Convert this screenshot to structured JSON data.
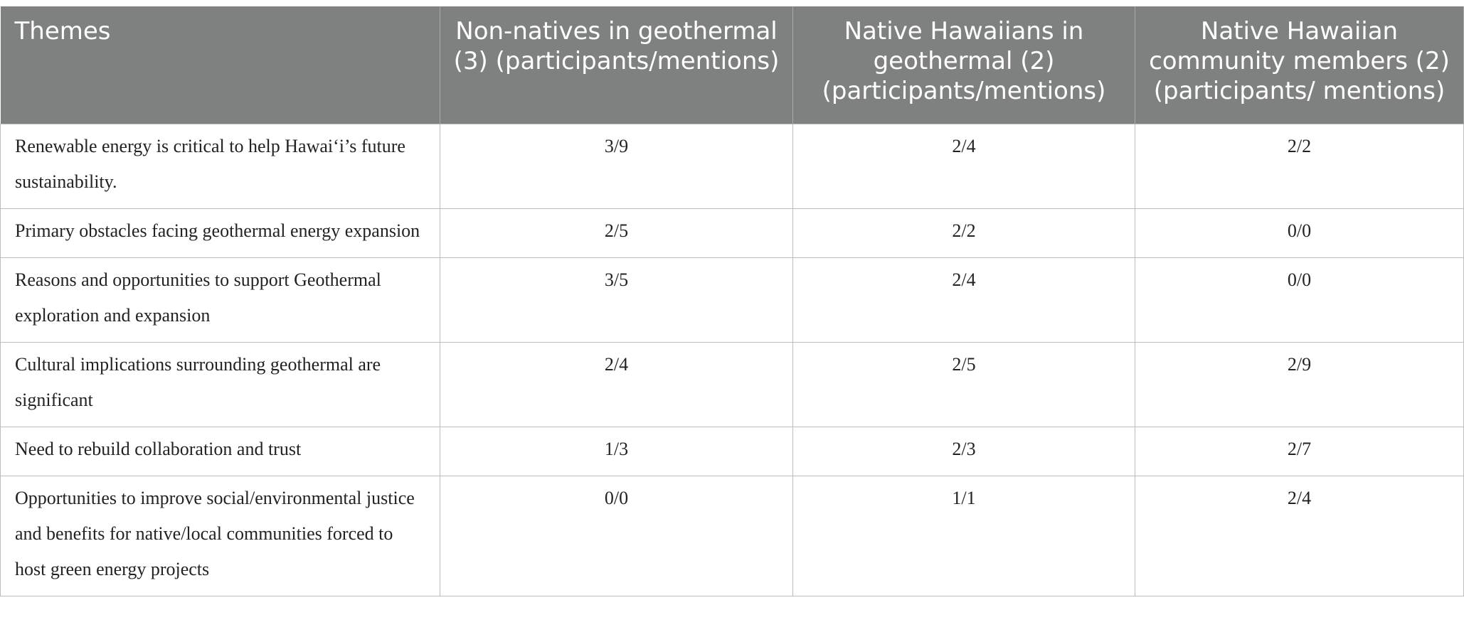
{
  "table": {
    "headers": [
      "Themes",
      "Non-natives in geothermal (3) (participants/mentions)",
      "Native Hawaiians in geothermal (2) (participants/mentions)",
      "Native Hawaiian community members (2) (participants/ mentions)"
    ],
    "rows": [
      [
        "Renewable energy is critical to help Hawai‘i’s future sustainability.",
        "3/9",
        "2/4",
        "2/2"
      ],
      [
        "Primary obstacles facing geothermal energy expansion",
        "2/5",
        "2/2",
        "0/0"
      ],
      [
        "Reasons and opportunities to support Geothermal exploration and expansion",
        "3/5",
        "2/4",
        "0/0"
      ],
      [
        "Cultural implications surrounding geothermal are significant",
        "2/4",
        "2/5",
        "2/9"
      ],
      [
        "Need to rebuild collaboration and trust",
        "1/3",
        "2/3",
        "2/7"
      ],
      [
        "Opportunities to improve social/environmental justice and benefits for native/local communities forced to host green energy projects",
        "0/0",
        "1/1",
        "2/4"
      ]
    ]
  }
}
